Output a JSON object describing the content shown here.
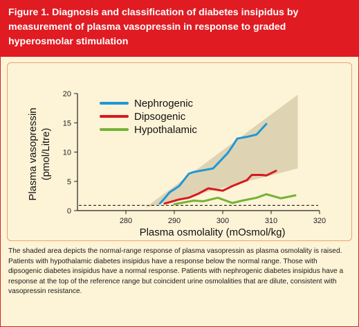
{
  "figure": {
    "title": "Figure 1. Diagnosis and classification of diabetes insipidus by measurement of plasma vasopressin in response to graded hyperosmolar stimulation",
    "caption": "The shaded area depicts the normal-range response of plasma vasopressin as plasma osmolality is raised. Patients with hypothalamic diabetes insipidus have a response below the normal range. Those with dipsogenic diabetes insipidus have a normal response. Patients with nephrogenic diabetes insipidus have a response at the top of the reference range but coincident urine osmolalities that are dilute, consistent with vasopressin resistance."
  },
  "colors": {
    "header_bg": "#e01b22",
    "panel_bg": "#fdf3d6",
    "normal_range": "#ded3b3",
    "nephrogenic": "#1e98d6",
    "dipsogenic": "#d71920",
    "hypothalamic": "#73b335"
  },
  "chart_data": {
    "type": "line",
    "xlabel": "Plasma osmolality (mOsmol/kg)",
    "ylabel_line1": "Plasma vasopressin",
    "ylabel_line2": "(pmol/Litre)",
    "xlim": [
      270,
      320
    ],
    "ylim": [
      0,
      20
    ],
    "xticks": [
      280,
      290,
      300,
      310,
      320
    ],
    "yticks": [
      0,
      5,
      10,
      15,
      20
    ],
    "grid": false,
    "legend_position": "top-left",
    "detection_limit_y": 0.9,
    "normal_range": {
      "upper": [
        [
          284,
          0.5
        ],
        [
          315.5,
          19.8
        ]
      ],
      "lower": [
        [
          284,
          0.5
        ],
        [
          315.5,
          7.2
        ]
      ]
    },
    "series": [
      {
        "name": "Nephrogenic",
        "color": "#1e98d6",
        "points": [
          [
            287,
            1.2
          ],
          [
            288,
            2.1
          ],
          [
            289,
            3.1
          ],
          [
            291,
            4.2
          ],
          [
            293,
            6.3
          ],
          [
            294,
            6.6
          ],
          [
            296,
            6.9
          ],
          [
            298,
            7.2
          ],
          [
            301,
            9.8
          ],
          [
            302,
            11.0
          ],
          [
            303,
            12.3
          ],
          [
            305,
            12.6
          ],
          [
            307,
            13.0
          ],
          [
            309,
            14.8
          ]
        ]
      },
      {
        "name": "Dipsogenic",
        "color": "#d71920",
        "points": [
          [
            288,
            1.2
          ],
          [
            291,
            1.9
          ],
          [
            293,
            2.2
          ],
          [
            295,
            2.9
          ],
          [
            297,
            3.8
          ],
          [
            300,
            3.4
          ],
          [
            302,
            4.2
          ],
          [
            305,
            5.2
          ],
          [
            306,
            6.1
          ],
          [
            308,
            6.1
          ],
          [
            309,
            6.0
          ],
          [
            311,
            6.8
          ]
        ]
      },
      {
        "name": "Hypothalamic",
        "color": "#73b335",
        "points": [
          [
            290,
            1.1
          ],
          [
            292,
            1.4
          ],
          [
            294,
            1.7
          ],
          [
            296,
            1.6
          ],
          [
            299,
            2.2
          ],
          [
            302,
            1.3
          ],
          [
            304,
            1.7
          ],
          [
            307,
            2.2
          ],
          [
            309,
            2.8
          ],
          [
            312,
            2.1
          ],
          [
            315,
            2.6
          ]
        ]
      }
    ]
  }
}
